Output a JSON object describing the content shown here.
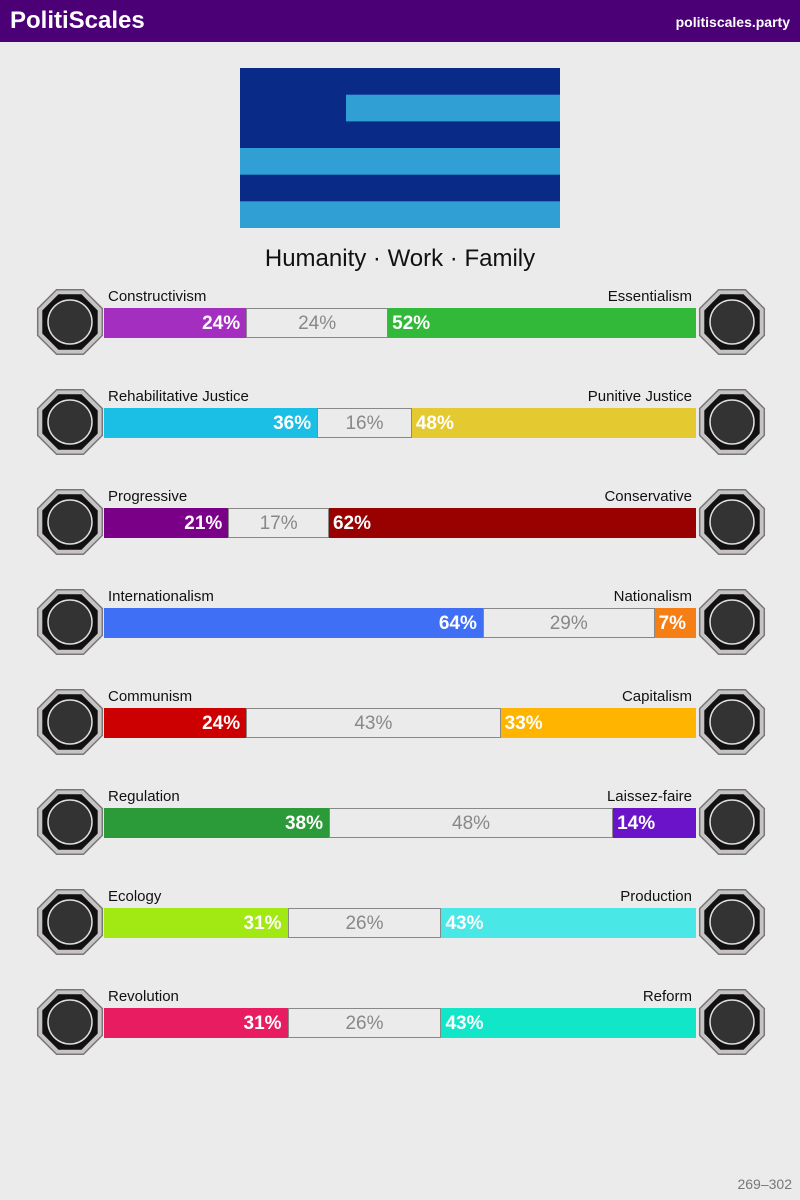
{
  "header": {
    "title": "PolitiScales",
    "site": "politiscales.party"
  },
  "motto": "Humanity · Work · Family",
  "axes": [
    {
      "left_name": "Constructivism",
      "right_name": "Essentialism",
      "left": {
        "value": 24,
        "label": "24%"
      },
      "middle": {
        "value": 24,
        "label": "24%"
      },
      "right": {
        "value": 52,
        "label": "52%"
      },
      "left_color": "#a32ec0",
      "right_color": "#33b93a"
    },
    {
      "left_name": "Rehabilitative Justice",
      "right_name": "Punitive Justice",
      "left": {
        "value": 36,
        "label": "36%"
      },
      "middle": {
        "value": 16,
        "label": "16%"
      },
      "right": {
        "value": 48,
        "label": "48%"
      },
      "left_color": "#1bbfe5",
      "right_color": "#e5c930"
    },
    {
      "left_name": "Progressive",
      "right_name": "Conservative",
      "left": {
        "value": 21,
        "label": "21%"
      },
      "middle": {
        "value": 17,
        "label": "17%"
      },
      "right": {
        "value": 62,
        "label": "62%"
      },
      "left_color": "#7a0088",
      "right_color": "#990000"
    },
    {
      "left_name": "Internationalism",
      "right_name": "Nationalism",
      "left": {
        "value": 64,
        "label": "64%"
      },
      "middle": {
        "value": 29,
        "label": "29%"
      },
      "right": {
        "value": 7,
        "label": "7%"
      },
      "left_color": "#3f6ff5",
      "right_color": "#f57f15"
    },
    {
      "left_name": "Communism",
      "right_name": "Capitalism",
      "left": {
        "value": 24,
        "label": "24%"
      },
      "middle": {
        "value": 43,
        "label": "43%"
      },
      "right": {
        "value": 33,
        "label": "33%"
      },
      "left_color": "#cc0000",
      "right_color": "#ffb400"
    },
    {
      "left_name": "Regulation",
      "right_name": "Laissez-faire",
      "left": {
        "value": 38,
        "label": "38%"
      },
      "middle": {
        "value": 48,
        "label": "48%"
      },
      "right": {
        "value": 14,
        "label": "14%"
      },
      "left_color": "#2b9a38",
      "right_color": "#6a13c8"
    },
    {
      "left_name": "Ecology",
      "right_name": "Production",
      "left": {
        "value": 31,
        "label": "31%"
      },
      "middle": {
        "value": 26,
        "label": "26%"
      },
      "right": {
        "value": 43,
        "label": "43%"
      },
      "left_color": "#a2e812",
      "right_color": "#4ae7e7"
    },
    {
      "left_name": "Revolution",
      "right_name": "Reform",
      "left": {
        "value": 31,
        "label": "31%"
      },
      "middle": {
        "value": 26,
        "label": "26%"
      },
      "right": {
        "value": 43,
        "label": "43%"
      },
      "left_color": "#e81c60",
      "right_color": "#12e6c8"
    }
  ],
  "footer": "269–302"
}
